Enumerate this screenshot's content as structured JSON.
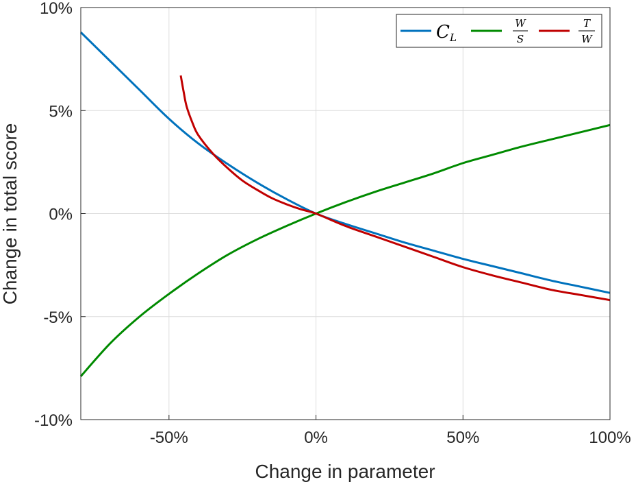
{
  "chart_data": {
    "type": "line",
    "xlabel": "Change in parameter",
    "ylabel": "Change in total score",
    "xlim": [
      -80,
      100
    ],
    "ylim": [
      -10,
      10
    ],
    "x_ticks": [
      -50,
      0,
      50,
      100
    ],
    "y_ticks": [
      -10,
      -5,
      0,
      5,
      10
    ],
    "x_tick_labels": [
      "-50%",
      "0%",
      "50%",
      "100%"
    ],
    "y_tick_labels": [
      "-10%",
      "-5%",
      "0%",
      "5%",
      "10%"
    ],
    "grid": true,
    "legend_position": "top-right",
    "series": [
      {
        "name": "C_L",
        "legend": {
          "main": "C",
          "sub": "L"
        },
        "color": "#0072BD",
        "points": [
          [
            -80,
            8.8
          ],
          [
            -70,
            7.4
          ],
          [
            -60,
            6.0
          ],
          [
            -50,
            4.6
          ],
          [
            -40,
            3.4
          ],
          [
            -30,
            2.4
          ],
          [
            -20,
            1.5
          ],
          [
            -10,
            0.7
          ],
          [
            0,
            0
          ],
          [
            10,
            -0.5
          ],
          [
            20,
            -0.95
          ],
          [
            30,
            -1.4
          ],
          [
            40,
            -1.8
          ],
          [
            50,
            -2.2
          ],
          [
            60,
            -2.55
          ],
          [
            70,
            -2.9
          ],
          [
            80,
            -3.25
          ],
          [
            90,
            -3.55
          ],
          [
            100,
            -3.85
          ]
        ]
      },
      {
        "name": "W/S",
        "legend": {
          "num": "W",
          "den": "S"
        },
        "color": "#008A00",
        "points": [
          [
            -80,
            -7.9
          ],
          [
            -70,
            -6.3
          ],
          [
            -60,
            -5.0
          ],
          [
            -50,
            -3.9
          ],
          [
            -40,
            -2.9
          ],
          [
            -30,
            -2.0
          ],
          [
            -20,
            -1.25
          ],
          [
            -10,
            -0.6
          ],
          [
            0,
            0
          ],
          [
            10,
            0.55
          ],
          [
            20,
            1.05
          ],
          [
            30,
            1.5
          ],
          [
            40,
            1.95
          ],
          [
            50,
            2.45
          ],
          [
            60,
            2.85
          ],
          [
            70,
            3.25
          ],
          [
            80,
            3.6
          ],
          [
            90,
            3.95
          ],
          [
            100,
            4.3
          ]
        ]
      },
      {
        "name": "T/W",
        "legend": {
          "num": "T",
          "den": "W"
        },
        "color": "#C00000",
        "points": [
          [
            -46,
            6.7
          ],
          [
            -45,
            5.9
          ],
          [
            -44,
            5.2
          ],
          [
            -42,
            4.4
          ],
          [
            -40,
            3.8
          ],
          [
            -35,
            2.9
          ],
          [
            -30,
            2.2
          ],
          [
            -25,
            1.6
          ],
          [
            -20,
            1.15
          ],
          [
            -15,
            0.75
          ],
          [
            -10,
            0.45
          ],
          [
            -5,
            0.2
          ],
          [
            0,
            0
          ],
          [
            10,
            -0.6
          ],
          [
            20,
            -1.1
          ],
          [
            30,
            -1.6
          ],
          [
            40,
            -2.1
          ],
          [
            50,
            -2.6
          ],
          [
            60,
            -3.0
          ],
          [
            70,
            -3.35
          ],
          [
            80,
            -3.7
          ],
          [
            90,
            -3.95
          ],
          [
            100,
            -4.2
          ]
        ]
      }
    ]
  }
}
